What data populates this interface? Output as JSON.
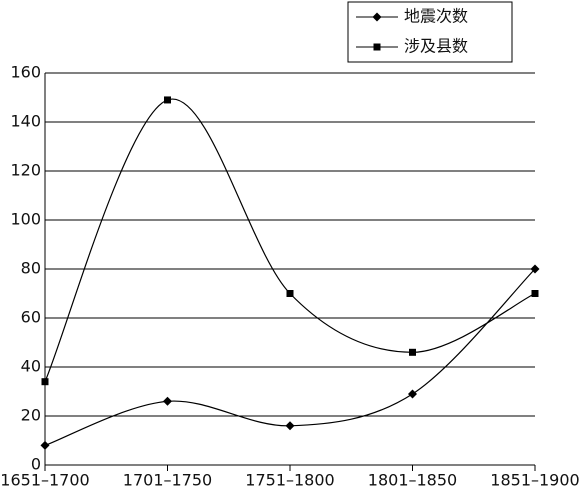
{
  "chart_data": {
    "type": "line",
    "categories": [
      "1651–1700",
      "1701–1750",
      "1751–1800",
      "1801–1850",
      "1851–1900"
    ],
    "series": [
      {
        "name": "地震次数",
        "color": "#000000",
        "marker": "diamond",
        "values": [
          8,
          26,
          16,
          29,
          80
        ]
      },
      {
        "name": "涉及县数",
        "color": "#000000",
        "marker": "square",
        "values": [
          34,
          149,
          70,
          46,
          70
        ]
      }
    ],
    "ylim": [
      0,
      160
    ],
    "yticks": [
      0,
      20,
      40,
      60,
      80,
      100,
      120,
      140,
      160
    ],
    "grid": true,
    "smooth": true,
    "legend": "top-right"
  }
}
